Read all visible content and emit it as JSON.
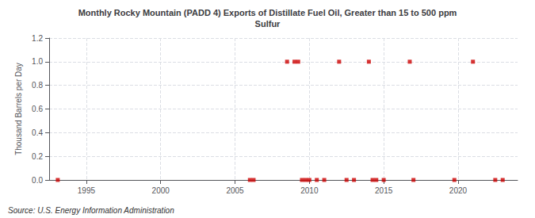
{
  "chart_data": {
    "type": "scatter",
    "title": "Monthly Rocky Mountain (PADD 4) Exports of Distillate Fuel Oil, Greater than 15 to 500 ppm\nSulfur",
    "ylabel": "Thousand Barrels per Day",
    "annotations": [
      "Source: U.S. Energy Information Administration"
    ],
    "color": "#cc0000",
    "marker": "square",
    "grid": true,
    "x": [
      1993.08,
      2006.0,
      2006.25,
      2008.5,
      2009.0,
      2009.25,
      2009.5,
      2009.75,
      2010.0,
      2010.5,
      2011.0,
      2012.0,
      2012.5,
      2013.0,
      2014.0,
      2014.25,
      2014.5,
      2015.0,
      2016.75,
      2017.0,
      2019.75,
      2021.0,
      2022.5,
      2023.0
    ],
    "values": [
      0.0,
      0.0,
      0.0,
      1.0,
      1.0,
      1.0,
      0.0,
      0.0,
      0.0,
      0.0,
      0.0,
      1.0,
      0.0,
      0.0,
      1.0,
      0.0,
      0.0,
      0.0,
      1.0,
      0.0,
      0.0,
      1.0,
      0.0,
      0.0
    ],
    "xlim": [
      1992.5,
      2024.0
    ],
    "xticks": [
      1995,
      2000,
      2005,
      2010,
      2015,
      2020
    ],
    "ylim": [
      0.0,
      1.2
    ],
    "yticks": [
      {
        "value": 0.0,
        "label": "0.0"
      },
      0.2,
      0.4,
      0.6,
      0.8,
      {
        "value": 1.0,
        "label": "1.0"
      },
      1.2
    ]
  }
}
